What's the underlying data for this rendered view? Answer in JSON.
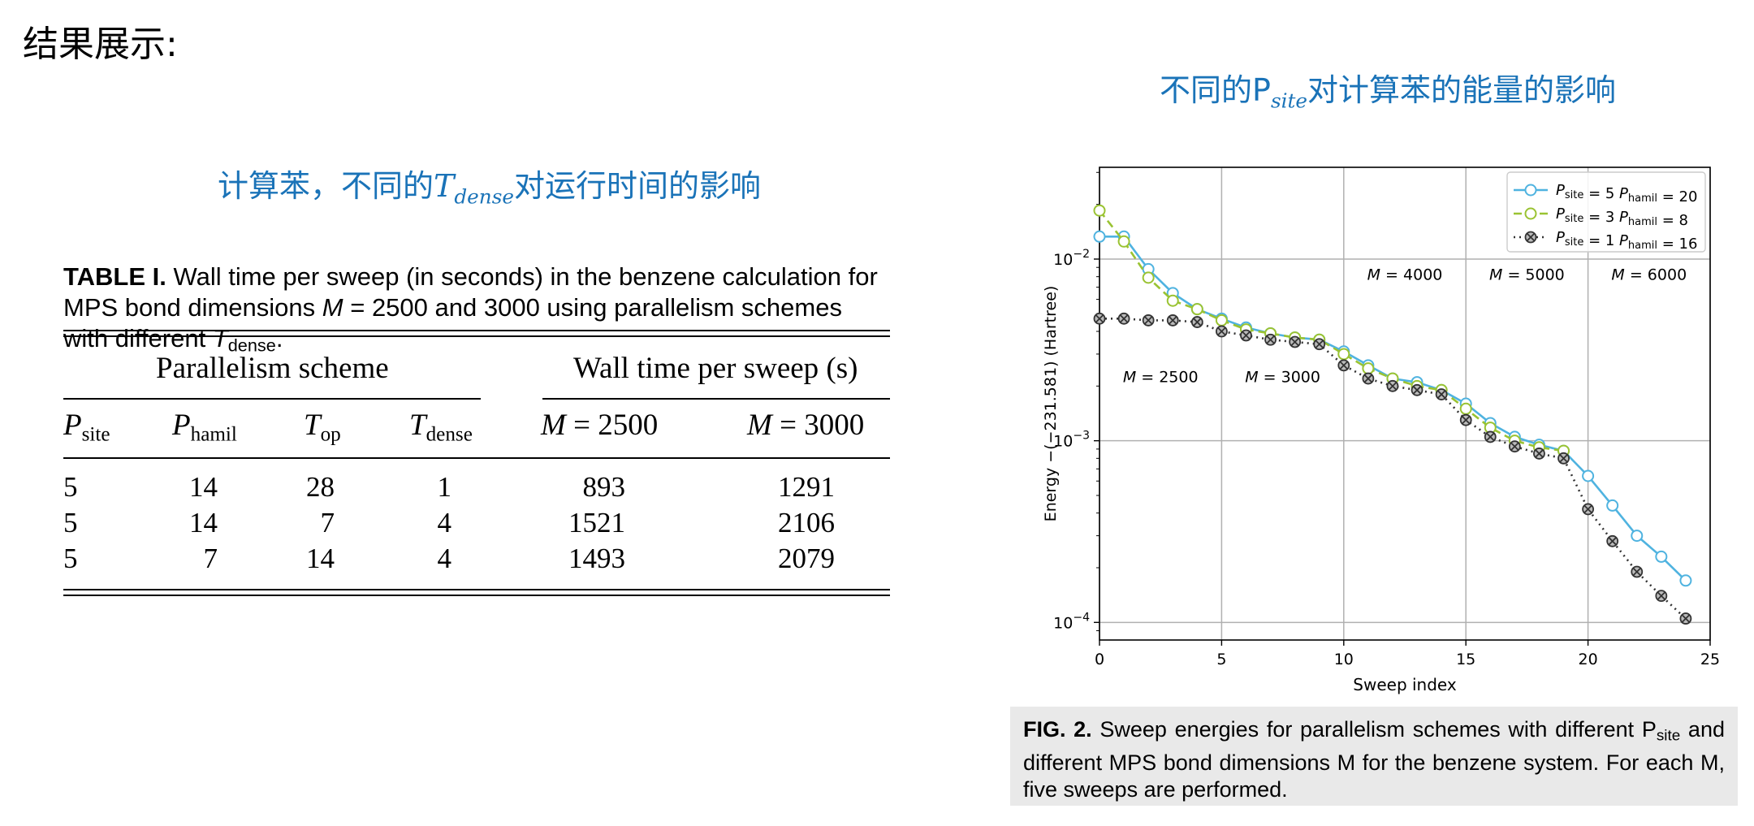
{
  "section_title": "结果展示:",
  "left_heading": {
    "prefix": "计算苯，不同的",
    "symbol": "T",
    "subscript": "dense",
    "suffix": "对运行时间的影响"
  },
  "right_heading": {
    "prefix": "不同的",
    "symbol": "P",
    "subscript": "site",
    "suffix": "对计算苯的能量的影响"
  },
  "table": {
    "caption_label": "TABLE I.",
    "caption_text_1": " Wall time per sweep (in seconds) in the benzene calculation for MPS bond dimensions ",
    "caption_m": "M",
    "caption_text_2": " = 2500 and 3000 using parallelism schemes with different ",
    "caption_t": "T",
    "caption_t_sub": "dense",
    "caption_end": ".",
    "group_left": "Parallelism scheme",
    "group_right": "Wall time per sweep (s)",
    "columns": [
      {
        "sym": "P",
        "sub": "site"
      },
      {
        "sym": "P",
        "sub": "hamil"
      },
      {
        "sym": "T",
        "sub": "op"
      },
      {
        "sym": "T",
        "sub": "dense"
      },
      {
        "sym": "M",
        "sub": "",
        "rest": " = 2500"
      },
      {
        "sym": "M",
        "sub": "",
        "rest": " = 3000"
      }
    ],
    "rows": [
      [
        "5",
        "14",
        "28",
        "1",
        "893",
        "1291"
      ],
      [
        "5",
        "14",
        "7",
        "4",
        "1521",
        "2106"
      ],
      [
        "5",
        "7",
        "14",
        "4",
        "1493",
        "2079"
      ]
    ]
  },
  "figure_caption": {
    "label": "FIG. 2.",
    "text": " Sweep energies for parallelism schemes with different P",
    "sub": "site",
    "text2": " and different MPS bond dimensions M for the benzene system. For each M, five sweeps are performed."
  },
  "chart_data": {
    "type": "line",
    "xlabel": "Sweep index",
    "ylabel": "Energy −(−231.581) (Hartree)",
    "yscale": "log",
    "xlim": [
      0,
      25
    ],
    "ylim": [
      8e-05,
      0.032
    ],
    "xticks": [
      0,
      5,
      10,
      15,
      20,
      25
    ],
    "yticks": [
      {
        "value": 0.01,
        "base": "10",
        "exp": "−2"
      },
      {
        "value": 0.001,
        "base": "10",
        "exp": "−3"
      },
      {
        "value": 0.0001,
        "base": "10",
        "exp": "−4"
      }
    ],
    "grid": true,
    "legend_position": "top-right",
    "series": [
      {
        "name": "P_site = 5 P_hamil = 20",
        "legend_p1": "site",
        "legend_v1": " = 5 ",
        "legend_p2": "hamil",
        "legend_v2": " = 20",
        "color": "#4fb3e0",
        "style": "solid",
        "marker": "circle",
        "x": [
          0,
          1,
          2,
          3,
          4,
          5,
          6,
          7,
          8,
          9,
          10,
          11,
          12,
          13,
          14,
          15,
          16,
          17,
          18,
          19,
          20,
          21,
          22,
          23,
          24
        ],
        "y": [
          0.0133,
          0.0133,
          0.0088,
          0.0065,
          0.0053,
          0.0047,
          0.0042,
          0.0039,
          0.0037,
          0.0036,
          0.0031,
          0.0026,
          0.0022,
          0.0021,
          0.0019,
          0.0016,
          0.00125,
          0.00105,
          0.00095,
          0.00088,
          0.00064,
          0.00044,
          0.0003,
          0.00023,
          0.00017
        ]
      },
      {
        "name": "P_site = 3 P_hamil = 8",
        "legend_p1": "site",
        "legend_v1": " = 3 ",
        "legend_p2": "hamil",
        "legend_v2": " = 8",
        "color": "#9ac332",
        "style": "dashed",
        "marker": "circle",
        "x": [
          0,
          1,
          2,
          3,
          4,
          5,
          6,
          7,
          8,
          9,
          10,
          11,
          12,
          13,
          14,
          15,
          16,
          17,
          18,
          19
        ],
        "y": [
          0.0185,
          0.0125,
          0.0079,
          0.0059,
          0.0053,
          0.0046,
          0.0041,
          0.0039,
          0.0037,
          0.0036,
          0.003,
          0.0025,
          0.0022,
          0.002,
          0.0019,
          0.0015,
          0.00118,
          0.001,
          0.00092,
          0.00088
        ]
      },
      {
        "name": "P_site = 1 P_hamil = 16",
        "legend_p1": "site",
        "legend_v1": " = 1 ",
        "legend_p2": "hamil",
        "legend_v2": " = 16",
        "color": "#333333",
        "style": "dotted",
        "marker": "x-circle",
        "x": [
          0,
          1,
          2,
          3,
          4,
          5,
          6,
          7,
          8,
          9,
          10,
          11,
          12,
          13,
          14,
          15,
          16,
          17,
          18,
          19,
          20,
          21,
          22,
          23,
          24
        ],
        "y": [
          0.0047,
          0.0047,
          0.0046,
          0.0046,
          0.0045,
          0.004,
          0.0038,
          0.0036,
          0.0035,
          0.0034,
          0.0026,
          0.0022,
          0.002,
          0.0019,
          0.0018,
          0.0013,
          0.00105,
          0.00093,
          0.00085,
          0.0008,
          0.00042,
          0.00028,
          0.00019,
          0.00014,
          0.000105
        ]
      }
    ],
    "annotations": [
      {
        "x": 2.5,
        "y": 0.0021,
        "m": "M",
        "text": " = 2500"
      },
      {
        "x": 7.5,
        "y": 0.0021,
        "m": "M",
        "text": " = 3000"
      },
      {
        "x": 12.5,
        "y": 0.0077,
        "m": "M",
        "text": " = 4000"
      },
      {
        "x": 17.5,
        "y": 0.0077,
        "m": "M",
        "text": " = 5000"
      },
      {
        "x": 22.5,
        "y": 0.0077,
        "m": "M",
        "text": " = 6000"
      }
    ]
  }
}
